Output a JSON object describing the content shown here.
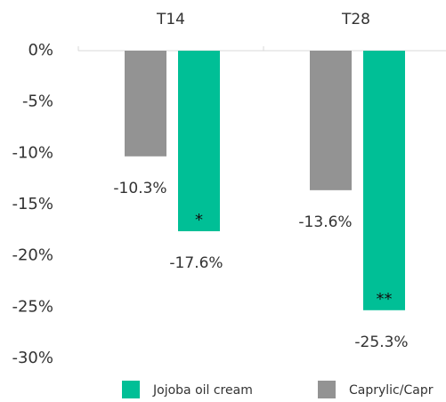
{
  "chart_data": {
    "type": "bar",
    "categories": [
      "T14",
      "T28"
    ],
    "series": [
      {
        "name": "Jojoba oil cream",
        "color": "#00bf96",
        "values": [
          -17.6,
          -25.3
        ],
        "value_labels": [
          "-17.6%",
          "-25.3%"
        ],
        "significance": [
          "*",
          "**"
        ]
      },
      {
        "name": "Caprylic/Capr",
        "color": "#939393",
        "values": [
          -10.3,
          -13.6
        ],
        "value_labels": [
          "-10.3%",
          "-13.6%"
        ]
      }
    ],
    "ylim": [
      -30,
      0
    ],
    "yticks": [
      {
        "value": 0,
        "label": "0%"
      },
      {
        "value": -5,
        "label": "-5%"
      },
      {
        "value": -10,
        "label": "-10%"
      },
      {
        "value": -15,
        "label": "-15%"
      },
      {
        "value": -20,
        "label": "-20%"
      },
      {
        "value": -25,
        "label": "-25%"
      },
      {
        "value": -30,
        "label": "-30%"
      }
    ],
    "grid": false,
    "legend": "bottom"
  }
}
